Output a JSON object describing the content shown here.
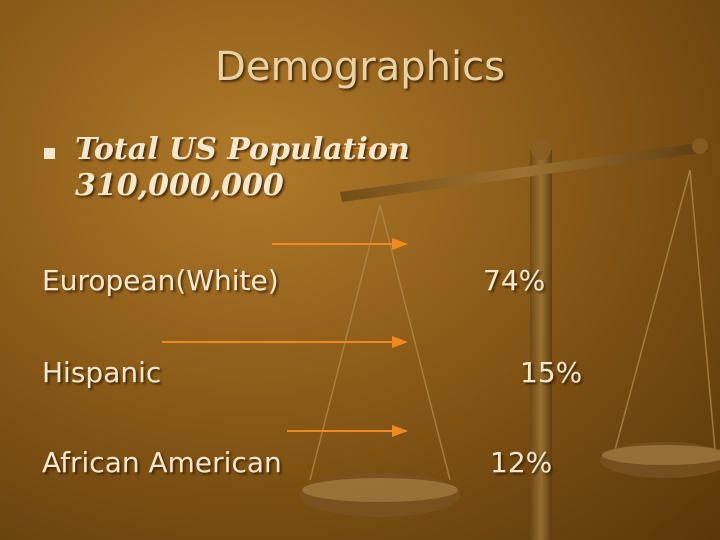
{
  "title": "Demographics",
  "bullet": {
    "label": "Total US Population",
    "value": "310,000,000"
  },
  "rows": [
    {
      "label": "European(White)",
      "percent": "74%"
    },
    {
      "label": "Hispanic",
      "percent": "15%"
    },
    {
      "label": "African American",
      "percent": "12%"
    }
  ]
}
